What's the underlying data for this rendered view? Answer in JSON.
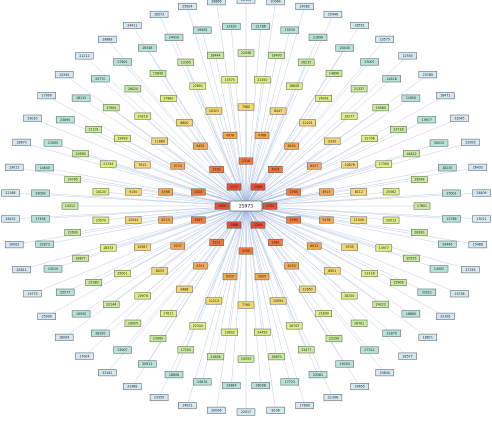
{
  "diagram": {
    "hub": {
      "label": "25973"
    },
    "ring_palette": [
      "#d3e8f2",
      "#b6e3d7",
      "#c9ec9c",
      "#dff083",
      "#f3d772",
      "#f5a94e",
      "#f07a3c",
      "#e84f34"
    ],
    "edge_color": "#8aa6d6",
    "rings": [
      [
        "22904",
        "20064",
        "24082",
        "25446",
        "26551",
        "23575",
        "12550",
        "23789",
        "18471",
        "32045",
        "22000",
        "26432",
        "18409",
        "13011",
        "15488",
        "27745",
        "15736",
        "32106",
        "18671",
        "28577",
        "23840",
        "24655",
        "21396",
        "17690",
        "8106",
        "22017",
        "20096",
        "14021",
        "23550",
        "31488",
        "33162",
        "17004",
        "16004",
        "25900",
        "19773",
        "25811",
        "10002",
        "26432",
        "22188",
        "19011",
        "18670",
        "29010",
        "17900",
        "12345",
        "21212",
        "19888",
        "24411",
        "16573",
        "25004",
        "28866"
      ],
      [
        "21786",
        "15530",
        "21899",
        "20440",
        "23007",
        "24418",
        "11650",
        "19977",
        "30015",
        "18230",
        "25001",
        "12788",
        "29440",
        "14502",
        "33021",
        "16660",
        "21870",
        "27312",
        "19004",
        "22561",
        "17723",
        "26008",
        "13984",
        "24870",
        "18808",
        "20911",
        "15007",
        "28100",
        "16930",
        "25577",
        "19210",
        "22873",
        "17456",
        "26099",
        "14640",
        "21005",
        "23890",
        "18112",
        "20770",
        "27601",
        "16348",
        "24410",
        "19905",
        "13320"
      ],
      [
        "22046",
        "18400",
        "26215",
        "14890",
        "21337",
        "19560",
        "23718",
        "16422",
        "25049",
        "17801",
        "28300",
        "20555",
        "15908",
        "24222",
        "18701",
        "22299",
        "13477",
        "26670",
        "19333",
        "21808",
        "17250",
        "23999",
        "16055",
        "20144",
        "25380",
        "18877",
        "22600",
        "14311",
        "24765",
        "19590",
        "21101",
        "17900",
        "26020",
        "15640",
        "23305",
        "18444"
      ],
      [
        "21450",
        "16808",
        "24001",
        "19277",
        "22706",
        "17390",
        "25562",
        "20013",
        "14977",
        "23118",
        "18250",
        "21899",
        "16703",
        "24450",
        "19802",
        "22340",
        "17611",
        "20978",
        "25001",
        "18333",
        "23570",
        "16120",
        "21744",
        "19499",
        "24218",
        "17980",
        "22601",
        "15575"
      ],
      [
        "7980",
        "8447",
        "12201",
        "9330",
        "10876",
        "8112",
        "11540",
        "9705",
        "8901",
        "12650",
        "10094",
        "7760",
        "11213",
        "9488",
        "8033",
        "10567",
        "12044",
        "9150",
        "7612",
        "11880",
        "8800",
        "10321"
      ],
      [
        "4788",
        "5630",
        "6207",
        "4913",
        "5478",
        "6012",
        "4550",
        "5899",
        "6320",
        "4701",
        "5237",
        "6110",
        "4398",
        "5744",
        "6455",
        "4976"
      ],
      [
        "2318",
        "3004",
        "2765",
        "3390",
        "2480",
        "3150",
        "2911",
        "3567",
        "2203",
        "3289"
      ],
      [
        "1406",
        "1732",
        "1209",
        "1588",
        "1950",
        "1117"
      ]
    ]
  }
}
